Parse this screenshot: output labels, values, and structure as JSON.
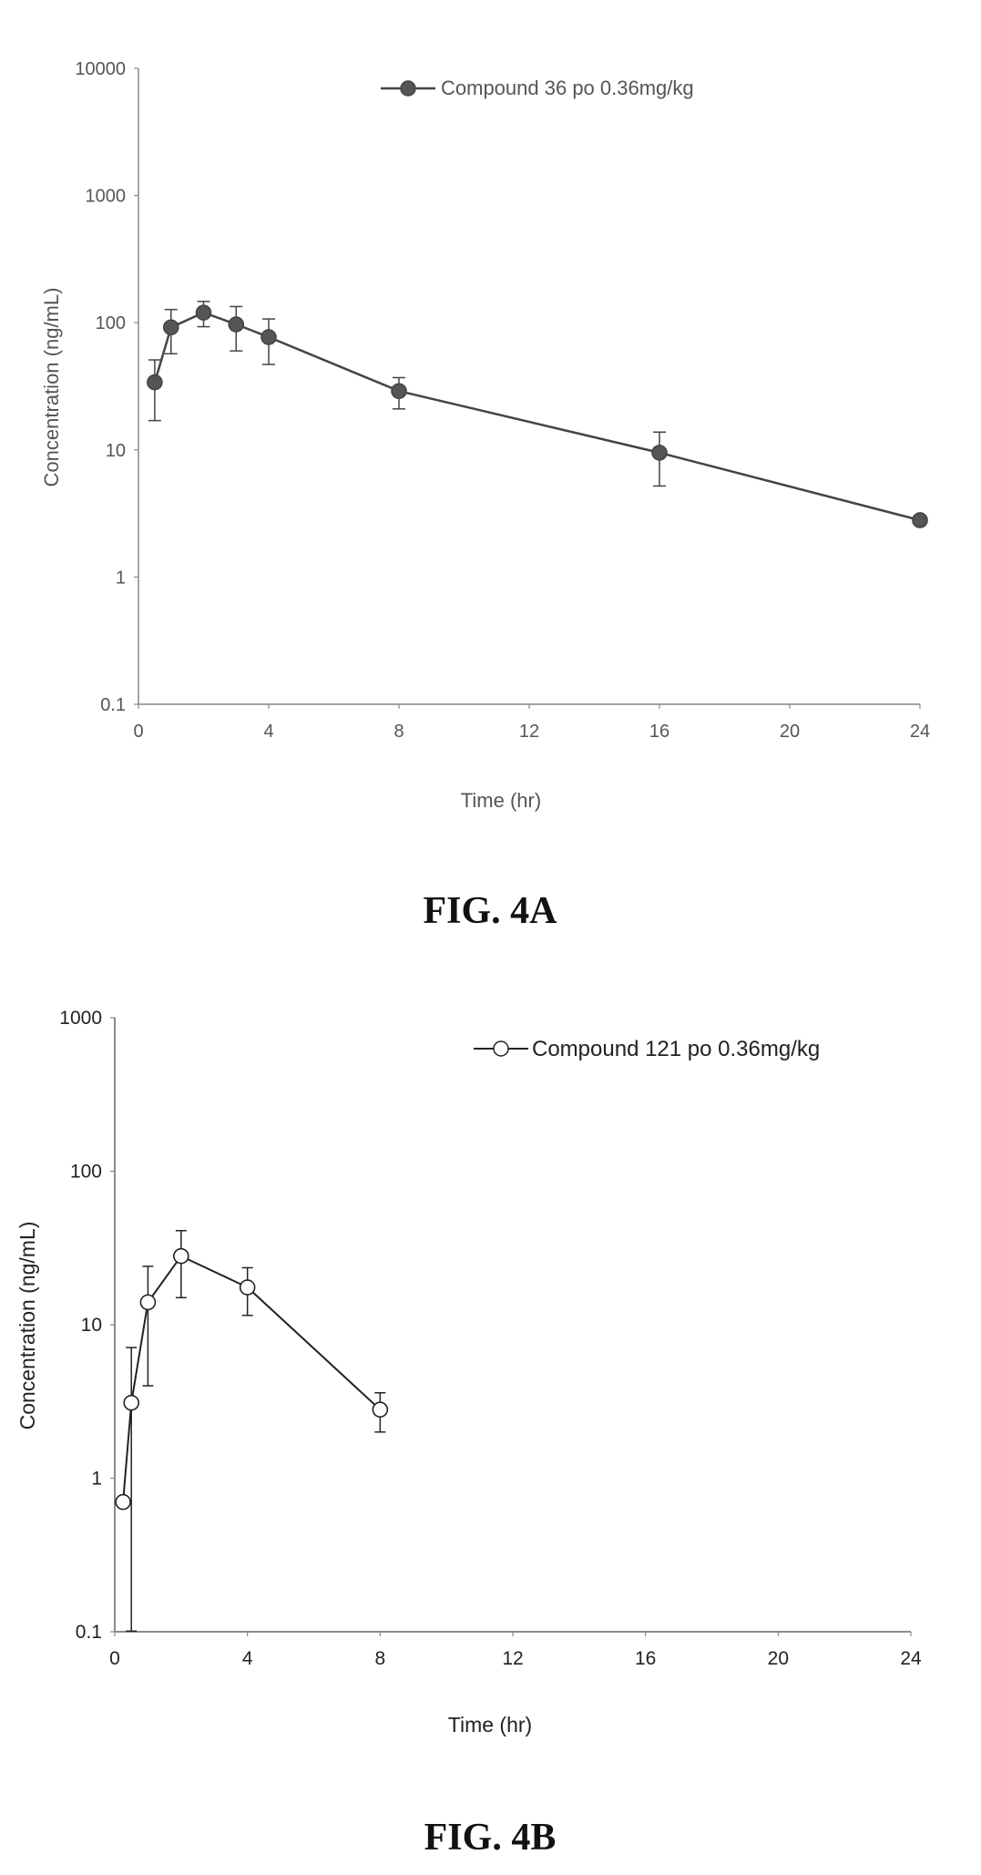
{
  "chart_data": [
    {
      "type": "line",
      "caption": "FIG. 4A",
      "xlabel": "Time (hr)",
      "ylabel": "Concentration (ng/mL)",
      "yscale": "log",
      "xlim": [
        0,
        24
      ],
      "ylim": [
        0.1,
        10000
      ],
      "xticks": [
        "0",
        "4",
        "8",
        "12",
        "16",
        "20",
        "24"
      ],
      "yticks": [
        "0.1",
        "1",
        "10",
        "100",
        "1000",
        "10000"
      ],
      "legend_position": "top-center",
      "grid": false,
      "series": [
        {
          "name": "Compound 36 po 0.36mg/kg",
          "marker": "filled-circle",
          "color": "#444444",
          "x": [
            0.5,
            1,
            2,
            3,
            4,
            8,
            16,
            24
          ],
          "y": [
            34,
            92,
            120,
            97,
            77,
            29,
            9.5,
            2.8
          ],
          "err": [
            17,
            35,
            27,
            37,
            30,
            8,
            4.3,
            0
          ]
        }
      ]
    },
    {
      "type": "line",
      "caption": "FIG. 4B",
      "xlabel": "Time (hr)",
      "ylabel": "Concentration (ng/mL)",
      "yscale": "log",
      "xlim": [
        0,
        24
      ],
      "ylim": [
        0.1,
        1000
      ],
      "xticks": [
        "0",
        "4",
        "8",
        "12",
        "16",
        "20",
        "24"
      ],
      "yticks": [
        "0.1",
        "1",
        "10",
        "100",
        "1000"
      ],
      "legend_position": "top-right",
      "grid": false,
      "series": [
        {
          "name": "Compound 121 po 0.36mg/kg",
          "marker": "open-circle",
          "color": "#222222",
          "x": [
            0.25,
            0.5,
            1,
            2,
            4,
            8
          ],
          "y": [
            0.7,
            3.1,
            14,
            28,
            17.5,
            2.8
          ],
          "err": [
            0,
            4,
            10,
            13,
            6,
            0.8
          ]
        }
      ]
    }
  ]
}
